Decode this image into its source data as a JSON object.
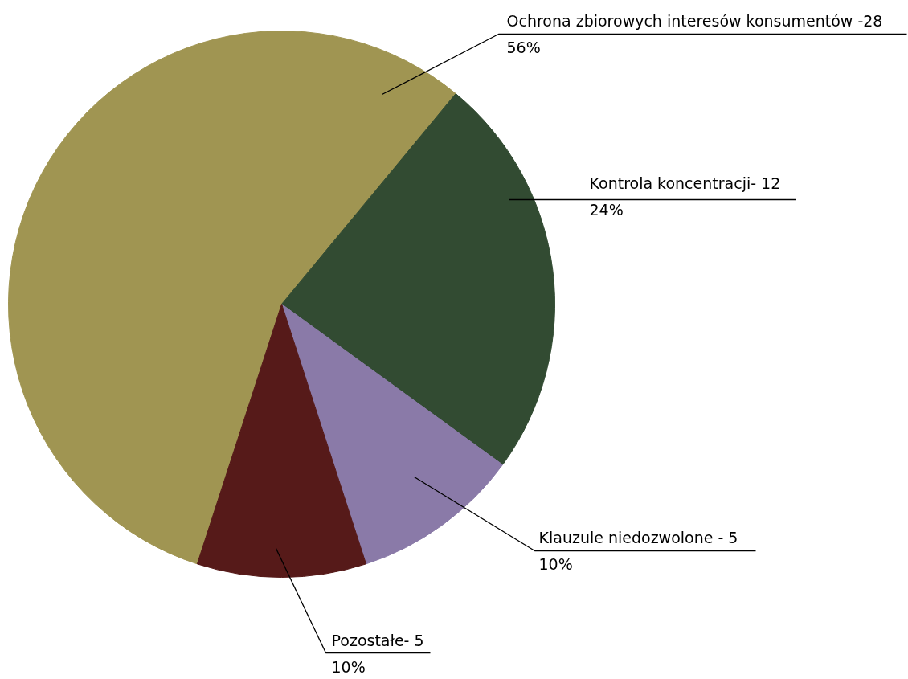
{
  "chart_data": {
    "type": "pie",
    "categories": [
      "Ochrona zbiorowych interesów konsumentów -28",
      "Kontrola koncentracji- 12",
      "Klauzule niedozwolone - 5",
      "Pozostałe- 5"
    ],
    "values": [
      56,
      24,
      10,
      10
    ],
    "colors": [
      "#a09552",
      "#324b32",
      "#8a7aa8",
      "#561a19"
    ],
    "value_labels": [
      "56%",
      "24%",
      "10%",
      "10%"
    ],
    "legend": false
  }
}
